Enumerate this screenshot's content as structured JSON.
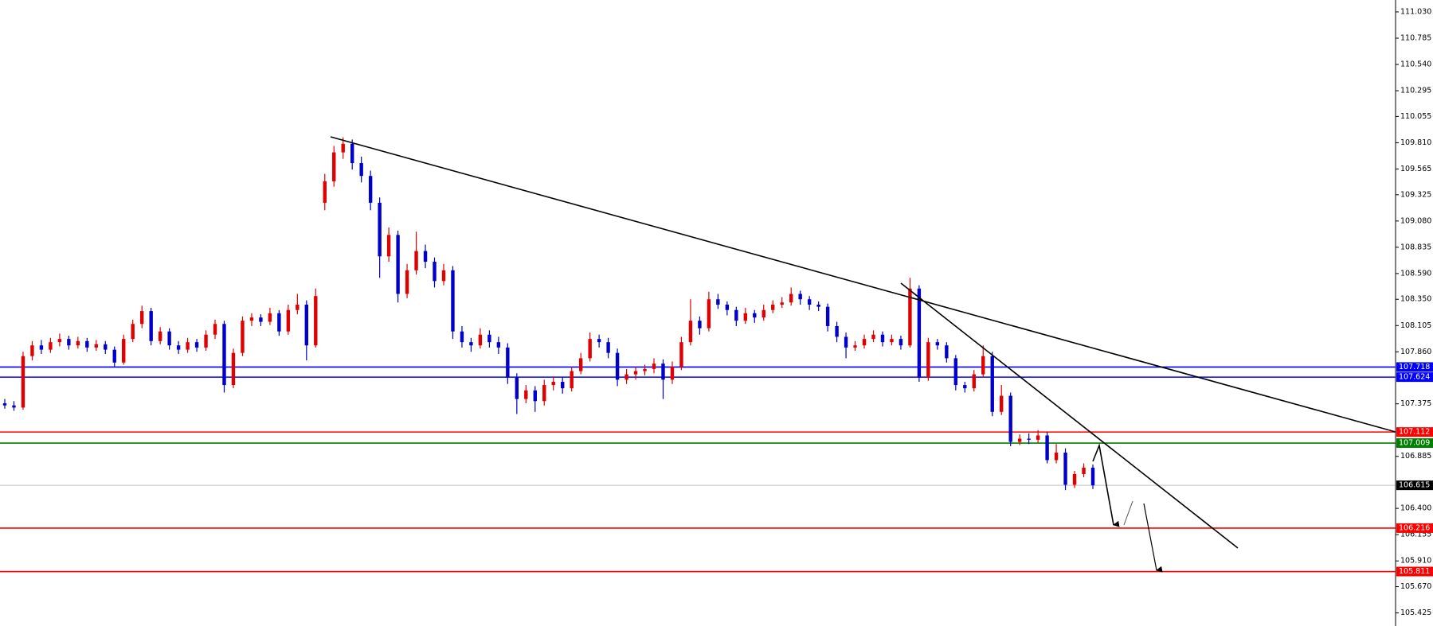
{
  "chart_data": {
    "type": "candlestick",
    "up_color": "#e00000",
    "down_color": "#0000cc",
    "ylim": [
      105.303,
      111.141
    ],
    "yticks": [
      {
        "value": 111.03,
        "label": "111.030"
      },
      110.785,
      {
        "value": 110.54,
        "label": "110.540"
      },
      110.295,
      110.055,
      {
        "value": 109.81,
        "label": "109.810"
      },
      109.565,
      109.325,
      {
        "value": 109.08,
        "label": "109.080"
      },
      108.835,
      {
        "value": 108.59,
        "label": "108.590"
      },
      {
        "value": 108.35,
        "label": "108.350"
      },
      108.105,
      {
        "value": 107.86,
        "label": "107.860"
      },
      107.375,
      106.885,
      {
        "value": 106.4,
        "label": "106.400"
      },
      106.155,
      {
        "value": 105.91,
        "label": "105.910"
      },
      {
        "value": 105.67,
        "label": "105.670"
      },
      105.425
    ],
    "levels": [
      {
        "value": 107.718,
        "color": "#0000ff"
      },
      {
        "value": 107.624,
        "color": "#0000ff"
      },
      {
        "value": 107.112,
        "color": "#ff0000"
      },
      {
        "value": 107.009,
        "color": "#008000"
      },
      {
        "value": 106.615,
        "color": "#c0c0c0",
        "label_color": "#000000"
      },
      {
        "value": 106.216,
        "color": "#ff0000"
      },
      {
        "value": 105.811,
        "color": "#ff0000"
      }
    ],
    "values": [
      [
        107.38,
        107.42,
        107.33,
        107.36
      ],
      [
        107.36,
        107.4,
        107.31,
        107.34
      ],
      [
        107.34,
        107.86,
        107.32,
        107.82
      ],
      [
        107.82,
        107.96,
        107.78,
        107.92
      ],
      [
        107.92,
        107.97,
        107.84,
        107.88
      ],
      [
        107.88,
        107.99,
        107.85,
        107.95
      ],
      [
        107.95,
        108.03,
        107.91,
        107.98
      ],
      [
        107.98,
        108.01,
        107.88,
        107.92
      ],
      [
        107.92,
        108.0,
        107.89,
        107.96
      ],
      [
        107.96,
        107.99,
        107.86,
        107.9
      ],
      [
        107.9,
        107.97,
        107.87,
        107.93
      ],
      [
        107.93,
        107.96,
        107.84,
        107.88
      ],
      [
        107.88,
        107.91,
        107.72,
        107.76
      ],
      [
        107.76,
        108.02,
        107.74,
        107.98
      ],
      [
        107.98,
        108.16,
        107.95,
        108.12
      ],
      [
        108.12,
        108.29,
        108.08,
        108.24
      ],
      [
        108.24,
        108.27,
        107.92,
        107.96
      ],
      [
        107.96,
        108.09,
        107.93,
        108.05
      ],
      [
        108.05,
        108.08,
        107.88,
        107.92
      ],
      [
        107.92,
        107.96,
        107.84,
        107.88
      ],
      [
        107.88,
        107.99,
        107.85,
        107.95
      ],
      [
        107.95,
        107.98,
        107.86,
        107.9
      ],
      [
        107.9,
        108.06,
        107.87,
        108.02
      ],
      [
        108.02,
        108.16,
        107.98,
        108.12
      ],
      [
        108.12,
        108.15,
        107.48,
        107.55
      ],
      [
        107.55,
        107.89,
        107.52,
        107.85
      ],
      [
        107.85,
        108.19,
        107.82,
        108.15
      ],
      [
        108.15,
        108.22,
        108.1,
        108.18
      ],
      [
        108.18,
        108.21,
        108.1,
        108.14
      ],
      [
        108.14,
        108.27,
        108.11,
        108.22
      ],
      [
        108.22,
        108.25,
        108.01,
        108.05
      ],
      [
        108.05,
        108.3,
        108.02,
        108.25
      ],
      [
        108.25,
        108.4,
        108.21,
        108.3
      ],
      [
        108.3,
        108.34,
        107.78,
        107.92
      ],
      [
        107.92,
        108.45,
        107.9,
        108.38
      ],
      [
        109.25,
        109.52,
        109.18,
        109.45
      ],
      [
        109.45,
        109.78,
        109.4,
        109.72
      ],
      [
        109.72,
        109.86,
        109.66,
        109.8
      ],
      [
        109.8,
        109.84,
        109.56,
        109.62
      ],
      [
        109.62,
        109.68,
        109.44,
        109.5
      ],
      [
        109.5,
        109.55,
        109.18,
        109.25
      ],
      [
        109.25,
        109.3,
        108.55,
        108.75
      ],
      [
        108.75,
        109.02,
        108.7,
        108.95
      ],
      [
        108.95,
        108.99,
        108.32,
        108.4
      ],
      [
        108.4,
        108.68,
        108.36,
        108.62
      ],
      [
        108.62,
        108.98,
        108.58,
        108.8
      ],
      [
        108.8,
        108.86,
        108.64,
        108.7
      ],
      [
        108.7,
        108.74,
        108.46,
        108.52
      ],
      [
        108.52,
        108.68,
        108.48,
        108.62
      ],
      [
        108.62,
        108.66,
        107.98,
        108.05
      ],
      [
        108.05,
        108.1,
        107.9,
        107.95
      ],
      [
        107.95,
        107.99,
        107.86,
        107.92
      ],
      [
        107.92,
        108.08,
        107.89,
        108.02
      ],
      [
        108.02,
        108.06,
        107.9,
        107.95
      ],
      [
        107.95,
        108.0,
        107.84,
        107.9
      ],
      [
        107.9,
        107.94,
        107.56,
        107.62
      ],
      [
        107.62,
        107.66,
        107.28,
        107.42
      ],
      [
        107.42,
        107.55,
        107.38,
        107.5
      ],
      [
        107.5,
        107.54,
        107.3,
        107.4
      ],
      [
        107.4,
        107.6,
        107.36,
        107.55
      ],
      [
        107.55,
        107.63,
        107.5,
        107.58
      ],
      [
        107.58,
        107.62,
        107.47,
        107.52
      ],
      [
        107.52,
        107.72,
        107.49,
        107.68
      ],
      [
        107.68,
        107.85,
        107.65,
        107.8
      ],
      [
        107.8,
        108.04,
        107.77,
        107.98
      ],
      [
        107.98,
        108.02,
        107.9,
        107.95
      ],
      [
        107.95,
        107.99,
        107.8,
        107.85
      ],
      [
        107.85,
        107.89,
        107.54,
        107.6
      ],
      [
        107.6,
        107.7,
        107.56,
        107.65
      ],
      [
        107.65,
        107.72,
        107.6,
        107.68
      ],
      [
        107.68,
        107.74,
        107.64,
        107.7
      ],
      [
        107.7,
        107.8,
        107.66,
        107.75
      ],
      [
        107.75,
        107.79,
        107.42,
        107.6
      ],
      [
        107.6,
        107.77,
        107.56,
        107.72
      ],
      [
        107.72,
        108.0,
        107.69,
        107.95
      ],
      [
        107.95,
        108.35,
        107.92,
        108.15
      ],
      [
        108.15,
        108.19,
        108.02,
        108.08
      ],
      [
        108.08,
        108.42,
        108.05,
        108.35
      ],
      [
        108.35,
        108.4,
        108.26,
        108.3
      ],
      [
        108.3,
        108.33,
        108.2,
        108.25
      ],
      [
        108.25,
        108.28,
        108.1,
        108.15
      ],
      [
        108.15,
        108.27,
        108.12,
        108.22
      ],
      [
        108.22,
        108.25,
        108.13,
        108.18
      ],
      [
        108.18,
        108.3,
        108.15,
        108.25
      ],
      [
        108.25,
        108.34,
        108.22,
        108.3
      ],
      [
        108.3,
        108.37,
        108.27,
        108.32
      ],
      [
        108.32,
        108.46,
        108.29,
        108.4
      ],
      [
        108.4,
        108.43,
        108.3,
        108.35
      ],
      [
        108.35,
        108.38,
        108.25,
        108.3
      ],
      [
        108.3,
        108.33,
        108.24,
        108.28
      ],
      [
        108.28,
        108.31,
        108.05,
        108.1
      ],
      [
        108.1,
        108.14,
        107.95,
        108.0
      ],
      [
        108.0,
        108.04,
        107.8,
        107.9
      ],
      [
        107.9,
        107.96,
        107.87,
        107.92
      ],
      [
        107.92,
        108.02,
        107.89,
        107.98
      ],
      [
        107.98,
        108.06,
        107.95,
        108.02
      ],
      [
        108.02,
        108.05,
        107.91,
        107.95
      ],
      [
        107.95,
        108.02,
        107.92,
        107.98
      ],
      [
        107.98,
        108.01,
        107.88,
        107.92
      ],
      [
        107.92,
        108.55,
        107.9,
        108.45
      ],
      [
        108.45,
        108.48,
        107.58,
        107.62
      ],
      [
        107.62,
        107.99,
        107.59,
        107.95
      ],
      [
        107.95,
        107.98,
        107.88,
        107.92
      ],
      [
        107.92,
        107.95,
        107.76,
        107.8
      ],
      [
        107.8,
        107.83,
        107.5,
        107.55
      ],
      [
        107.55,
        107.58,
        107.48,
        107.52
      ],
      [
        107.52,
        107.69,
        107.49,
        107.65
      ],
      [
        107.65,
        107.92,
        107.62,
        107.82
      ],
      [
        107.82,
        107.86,
        107.26,
        107.3
      ],
      [
        107.3,
        107.55,
        107.27,
        107.45
      ],
      [
        107.45,
        107.48,
        106.98,
        107.02
      ],
      [
        107.02,
        107.09,
        106.99,
        107.05
      ],
      [
        107.05,
        107.1,
        107.0,
        107.04
      ],
      [
        107.04,
        107.13,
        107.01,
        107.08
      ],
      [
        107.08,
        107.11,
        106.82,
        106.85
      ],
      [
        106.85,
        107.0,
        106.82,
        106.92
      ],
      [
        106.92,
        106.96,
        106.57,
        106.62
      ],
      [
        106.62,
        106.75,
        106.59,
        106.72
      ],
      [
        106.72,
        106.82,
        106.69,
        106.78
      ],
      [
        106.78,
        106.81,
        106.58,
        106.615
      ]
    ]
  }
}
